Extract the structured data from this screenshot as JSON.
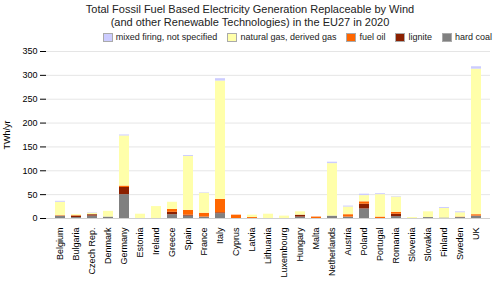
{
  "chart_data": {
    "type": "bar",
    "stacked": true,
    "title": "Total Fossil Fuel Based Electricity Generation Replaceable by Wind\n(and other Renewable Technologies) in the EU27 in 2020",
    "ylabel": "TWh/yr",
    "ylim": [
      0,
      350
    ],
    "yticks": [
      0,
      50,
      100,
      150,
      200,
      250,
      300,
      350
    ],
    "grid": true,
    "legend": "upper right",
    "categories": [
      "Belgium",
      "Bulgaria",
      "Czech Rep.",
      "Denmark",
      "Germany",
      "Estonia",
      "Ireland",
      "Greece",
      "Spain",
      "France",
      "Italy",
      "Cyprus",
      "Latvia",
      "Lithuania",
      "Luxembourg",
      "Hungary",
      "Malta",
      "Netherlands",
      "Austria",
      "Poland",
      "Portugal",
      "Romania",
      "Slovenia",
      "Slovakia",
      "Finland",
      "Sweden",
      "UK"
    ],
    "series": [
      {
        "name": "hard coal",
        "color": "#808080",
        "values": [
          5,
          2,
          5,
          3,
          50,
          0,
          0,
          8,
          5,
          3,
          10,
          0,
          0,
          0,
          0,
          3,
          0,
          5,
          3,
          20,
          0,
          4,
          0,
          2,
          1,
          2,
          5
        ]
      },
      {
        "name": "lignite",
        "color": "#8B2000",
        "values": [
          0,
          3,
          3,
          0,
          15,
          0,
          0,
          5,
          2,
          0,
          2,
          0,
          0,
          0,
          0,
          4,
          0,
          0,
          0,
          10,
          0,
          5,
          0,
          0,
          0,
          0,
          0
        ]
      },
      {
        "name": "fuel oil",
        "color": "#FF6600",
        "values": [
          1,
          1,
          0,
          0,
          3,
          0,
          0,
          6,
          10,
          8,
          28,
          7,
          2,
          0,
          0,
          0,
          3,
          0,
          5,
          5,
          3,
          4,
          0,
          0,
          0,
          1,
          3
        ]
      },
      {
        "name": "natural gas, derived gas",
        "color": "#FFFFAA",
        "values": [
          28,
          2,
          3,
          12,
          105,
          9,
          25,
          15,
          113,
          42,
          248,
          0,
          5,
          9,
          5,
          7,
          0,
          110,
          16,
          13,
          47,
          32,
          2,
          12,
          20,
          9,
          305
        ]
      },
      {
        "name": "mixed firing, not specified",
        "color": "#CCCCFF",
        "values": [
          2,
          0,
          1,
          0,
          2,
          0,
          0,
          0,
          2,
          1,
          5,
          0,
          0,
          0,
          0,
          0,
          0,
          3,
          2,
          3,
          2,
          1,
          0,
          0,
          2,
          2,
          5
        ]
      }
    ]
  }
}
